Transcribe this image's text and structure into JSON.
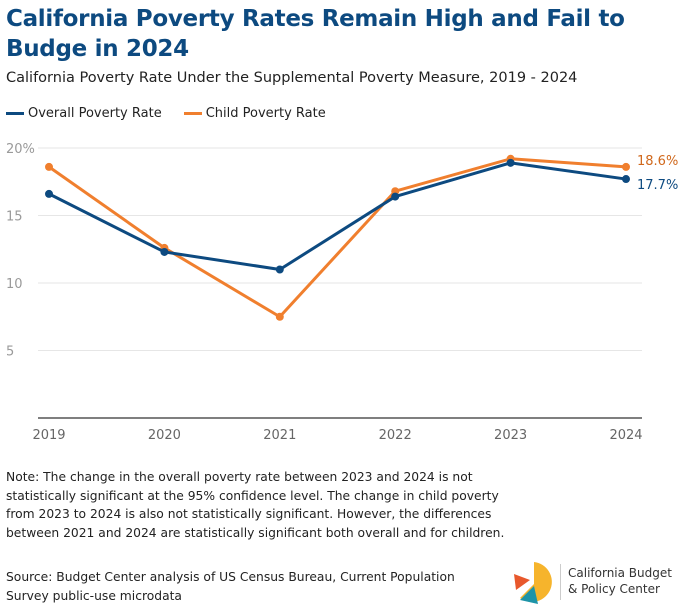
{
  "chart_data": {
    "type": "line",
    "title": "California Poverty Rates Remain High and Fail to Budge in 2024",
    "subtitle": "California Poverty Rate Under the Supplemental Poverty Measure, 2019 - 2024",
    "categories": [
      "2019",
      "2020",
      "2021",
      "2022",
      "2023",
      "2024"
    ],
    "series": [
      {
        "name": "Overall Poverty Rate",
        "color": "#0d4a80",
        "values": [
          16.6,
          12.3,
          11.0,
          16.4,
          18.9,
          17.7
        ],
        "end_label": "17.7%"
      },
      {
        "name": "Child Poverty Rate",
        "color": "#f07f2e",
        "values": [
          18.6,
          12.6,
          7.5,
          16.8,
          19.2,
          18.6
        ],
        "end_label": "18.6%"
      }
    ],
    "yticks": [
      {
        "v": 20,
        "label": "20%"
      },
      {
        "v": 15,
        "label": "15"
      },
      {
        "v": 10,
        "label": "10"
      },
      {
        "v": 5,
        "label": "5"
      }
    ],
    "ylim": [
      0,
      20
    ],
    "grid": true,
    "legend": "top-left"
  },
  "note": "Note: The change in the overall poverty rate between 2023 and 2024 is not statistically significant at the 95% confidence level. The change in child poverty from 2023 to 2024 is also not statistically significant. However, the differences between 2021 and 2024 are statistically significant both overall and for children.",
  "source": "Source: Budget Center analysis of US Census Bureau, Current Population Survey public-use microdata",
  "logo": {
    "line1": "California Budget",
    "line2": "& Policy Center"
  }
}
